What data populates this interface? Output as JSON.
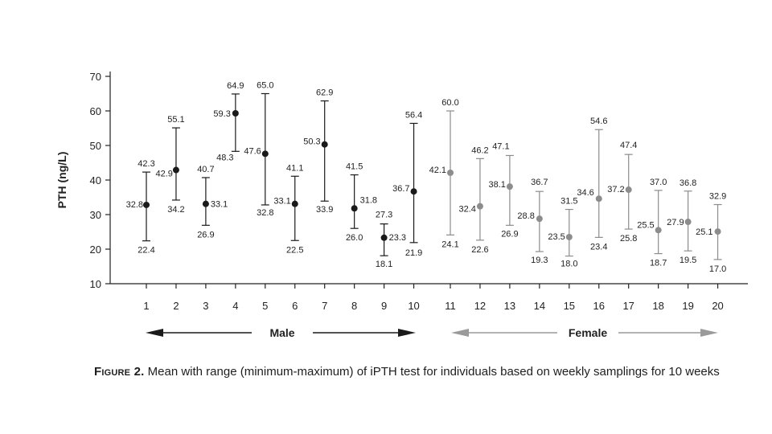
{
  "chart_data": {
    "type": "scatter",
    "title": "",
    "xlabel": "",
    "ylabel": "PTH (ng/L)",
    "ylim": [
      10,
      70
    ],
    "yticks": [
      10,
      20,
      30,
      40,
      50,
      60,
      70
    ],
    "grid": false,
    "groups": [
      {
        "name": "Male",
        "from": 1,
        "to": 10,
        "color": "#1a1a1a"
      },
      {
        "name": "Female",
        "from": 11,
        "to": 20,
        "color": "#8c8c8c"
      }
    ],
    "series": [
      {
        "name": "Male",
        "x": [
          1,
          2,
          3,
          4,
          5,
          6,
          7,
          8,
          9,
          10
        ],
        "mean": [
          32.8,
          42.9,
          33.1,
          59.3,
          47.6,
          33.1,
          50.3,
          31.8,
          23.3,
          36.7
        ],
        "max": [
          42.3,
          55.1,
          40.7,
          64.9,
          65.0,
          41.1,
          62.9,
          41.5,
          27.3,
          56.4
        ],
        "min": [
          22.4,
          34.2,
          26.9,
          48.3,
          32.8,
          22.5,
          33.9,
          26.0,
          18.1,
          21.9
        ]
      },
      {
        "name": "Female",
        "x": [
          11,
          12,
          13,
          14,
          15,
          16,
          17,
          18,
          19,
          20
        ],
        "mean": [
          42.1,
          32.4,
          38.1,
          28.8,
          23.5,
          34.6,
          37.2,
          25.5,
          27.9,
          25.1
        ],
        "max": [
          60.0,
          46.2,
          47.1,
          36.7,
          31.5,
          54.6,
          47.4,
          37.0,
          36.8,
          32.9
        ],
        "min": [
          24.1,
          22.6,
          26.9,
          19.3,
          18.0,
          23.4,
          25.8,
          18.7,
          19.5,
          17.0
        ]
      }
    ],
    "labels": {
      "mean": [
        "32.8",
        "42.9",
        "33.1",
        "59.3",
        "47.6",
        "33.1",
        "50.3",
        "31.8",
        "23.3",
        "36.7",
        "42.1",
        "32.4",
        "38.1",
        "28.8",
        "23.5",
        "34.6",
        "37.2",
        "25.5",
        "27.9",
        "25.1"
      ],
      "max": [
        "42.3",
        "55.1",
        "40.7",
        "64.9",
        "65.0",
        "41.1",
        "62.9",
        "41.5",
        "27.3",
        "56.4",
        "60.0",
        "46.2",
        "47.1",
        "36.7",
        "31.5",
        "54.6",
        "47.4",
        "37.0",
        "36.8",
        "32.9"
      ],
      "min": [
        "22.4",
        "34.2",
        "26.9",
        "48.3",
        "32.8",
        "22.5",
        "33.9",
        "26.0",
        "18.1",
        "21.9",
        "24.1",
        "22.6",
        "26.9",
        "19.3",
        "18.0",
        "23.4",
        "25.8",
        "18.7",
        "19.5",
        "17.0"
      ]
    },
    "group_labels": {
      "male": "Male",
      "female": "Female"
    }
  },
  "caption": {
    "figure_label": "Figure 2.",
    "text": " Mean with range (minimum-maximum) of iPTH test for individuals based on weekly samplings for 10 weeks"
  }
}
